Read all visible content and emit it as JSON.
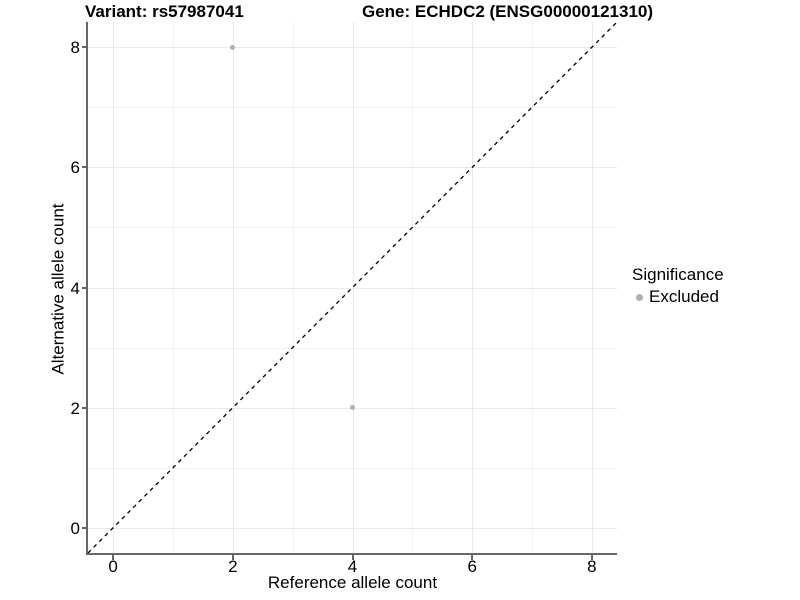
{
  "titles": {
    "left": "Variant: rs57987041",
    "right": "Gene: ECHDC2 (ENSG00000121310)"
  },
  "axes": {
    "x": {
      "label": "Reference allele count",
      "ticks": [
        0,
        2,
        4,
        6,
        8
      ]
    },
    "y": {
      "label": "Alternative allele count",
      "ticks": [
        0,
        2,
        4,
        6,
        8
      ]
    }
  },
  "legend": {
    "title": "Significance",
    "items": [
      {
        "label": "Excluded",
        "color": "#b0b0b0"
      }
    ]
  },
  "chart_data": {
    "type": "scatter",
    "title": "Variant: rs57987041 | Gene: ECHDC2 (ENSG00000121310)",
    "xlabel": "Reference allele count",
    "ylabel": "Alternative allele count",
    "xlim": [
      -0.42,
      8.42
    ],
    "ylim": [
      -0.42,
      8.42
    ],
    "x_ticks": [
      0,
      2,
      4,
      6,
      8
    ],
    "y_ticks": [
      0,
      2,
      4,
      6,
      8
    ],
    "minor_x": [
      1,
      3,
      5,
      7
    ],
    "minor_y": [
      1,
      3,
      5,
      7
    ],
    "grid": "on",
    "legend_position": "right",
    "series": [
      {
        "name": "Excluded",
        "color": "#b0b0b0",
        "points": [
          {
            "x": 2,
            "y": 8
          },
          {
            "x": 4,
            "y": 2
          }
        ]
      }
    ],
    "reference_line": {
      "kind": "identity",
      "style": "dashed",
      "color": "#000000"
    }
  },
  "colors": {
    "background": "#ffffff",
    "grid_major": "#e9e9e9",
    "grid_minor": "#f3f3f3",
    "axis_line": "#666666",
    "tick_mark": "#666666",
    "text": "#000000",
    "point": "#b0b0b0",
    "dashed_line": "#000000"
  }
}
